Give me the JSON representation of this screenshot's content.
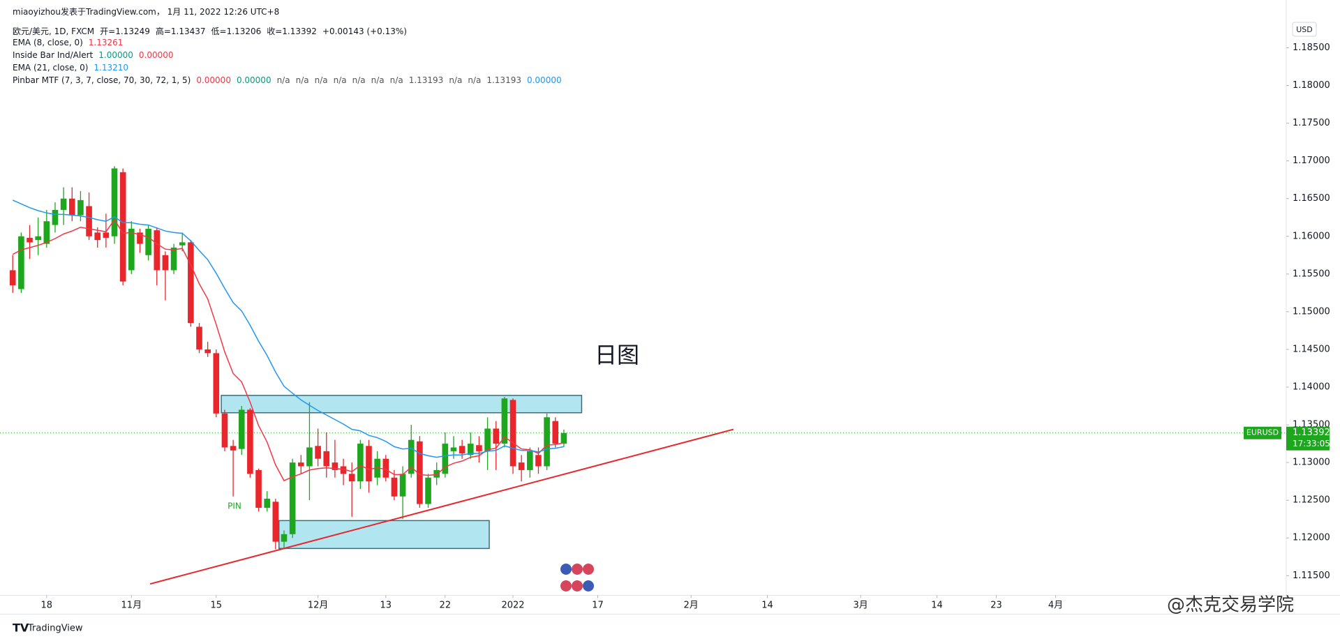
{
  "header": {
    "author": "miaoyizhou发表于TradingView.com， 1月 11, 2022 12:26 UTC+8",
    "symbol": "欧元/美元, 1D, FXCM",
    "ohlc": [
      {
        "label": "开=",
        "value": "1.13249"
      },
      {
        "label": "高=",
        "value": "1.13437"
      },
      {
        "label": "低=",
        "value": "1.13206"
      },
      {
        "label": "收=",
        "value": "1.13392"
      }
    ],
    "change": "+0.00143 (+0.13%)"
  },
  "indicators": [
    {
      "name": "EMA (8, close, 0)",
      "values": [
        {
          "text": "1.13261",
          "color": "#f23645"
        }
      ]
    },
    {
      "name": "Inside Bar Ind/Alert",
      "values": [
        {
          "text": "1.00000",
          "color": "#089981"
        },
        {
          "text": "0.00000",
          "color": "#f23645"
        }
      ]
    },
    {
      "name": "EMA (21, close, 0)",
      "values": [
        {
          "text": "1.13210",
          "color": "#2196f3"
        }
      ]
    },
    {
      "name": "Pinbar MTF (7, 3, 7, close, 70, 30, 72, 1, 5)",
      "values": [
        {
          "text": "0.00000",
          "color": "#f23645"
        },
        {
          "text": "0.00000",
          "color": "#089981"
        },
        {
          "text": "n/a",
          "color": "#555"
        },
        {
          "text": "n/a",
          "color": "#555"
        },
        {
          "text": "n/a",
          "color": "#555"
        },
        {
          "text": "n/a",
          "color": "#555"
        },
        {
          "text": "n/a",
          "color": "#555"
        },
        {
          "text": "n/a",
          "color": "#555"
        },
        {
          "text": "n/a",
          "color": "#555"
        },
        {
          "text": "1.13193",
          "color": "#555"
        },
        {
          "text": "n/a",
          "color": "#555"
        },
        {
          "text": "n/a",
          "color": "#555"
        },
        {
          "text": "1.13193",
          "color": "#555"
        },
        {
          "text": "0.00000",
          "color": "#2196f3"
        }
      ]
    }
  ],
  "chart_data": {
    "type": "candlestick",
    "annotation": "日图",
    "pin_label": "PIN",
    "currency": "USD",
    "up_color": "#1fa61f",
    "down_color": "#e8262b",
    "x": [
      0,
      1,
      2,
      3,
      4,
      5,
      6,
      7,
      8,
      9,
      10,
      11,
      12,
      13,
      14,
      15,
      16,
      17,
      18,
      19,
      20,
      21,
      22,
      23,
      24,
      25,
      26,
      27,
      28,
      29,
      30,
      31,
      32,
      33,
      34,
      35,
      36,
      37,
      38,
      39,
      40,
      41,
      42,
      43,
      44,
      45,
      46,
      47,
      48,
      49,
      50,
      51,
      52,
      53,
      54,
      55,
      56,
      57,
      58,
      59,
      60,
      61,
      62,
      63,
      64,
      65
    ],
    "open": [
      1.1555,
      1.153,
      1.1598,
      1.1595,
      1.159,
      1.1615,
      1.1635,
      1.165,
      1.1628,
      1.164,
      1.1605,
      1.1605,
      1.16,
      1.1685,
      1.1555,
      1.1605,
      1.1575,
      1.1608,
      1.1575,
      1.1555,
      1.1588,
      1.1592,
      1.148,
      1.145,
      1.1445,
      1.1365,
      1.1322,
      1.1318,
      1.137,
      1.129,
      1.124,
      1.1248,
      1.1195,
      1.1205,
      1.13,
      1.1295,
      1.1322,
      1.1315,
      1.13,
      1.1295,
      1.1285,
      1.1275,
      1.1322,
      1.128,
      1.1305,
      1.128,
      1.1255,
      1.1285,
      1.1328,
      1.1245,
      1.128,
      1.1285,
      1.1315,
      1.1322,
      1.131,
      1.1323,
      1.1315,
      1.1345,
      1.1325,
      1.1383,
      1.13,
      1.129,
      1.131,
      1.1295,
      1.1355,
      1.13249
    ],
    "high": [
      1.1575,
      1.1605,
      1.1615,
      1.1625,
      1.1635,
      1.1645,
      1.1665,
      1.1665,
      1.166,
      1.1658,
      1.1612,
      1.163,
      1.1693,
      1.169,
      1.162,
      1.161,
      1.1615,
      1.1612,
      1.158,
      1.159,
      1.1605,
      1.1595,
      1.1485,
      1.146,
      1.145,
      1.137,
      1.133,
      1.1375,
      1.1372,
      1.1292,
      1.1262,
      1.1252,
      1.121,
      1.1305,
      1.131,
      1.138,
      1.1345,
      1.134,
      1.133,
      1.1305,
      1.13,
      1.133,
      1.133,
      1.1315,
      1.131,
      1.129,
      1.1295,
      1.135,
      1.1335,
      1.1285,
      1.13,
      1.134,
      1.1335,
      1.133,
      1.134,
      1.1335,
      1.136,
      1.1355,
      1.1387,
      1.1385,
      1.131,
      1.132,
      1.132,
      1.1365,
      1.136,
      1.13437
    ],
    "low": [
      1.1525,
      1.1525,
      1.157,
      1.1575,
      1.1585,
      1.1605,
      1.1615,
      1.162,
      1.162,
      1.1595,
      1.1585,
      1.1585,
      1.159,
      1.1535,
      1.155,
      1.1578,
      1.1568,
      1.1535,
      1.1515,
      1.155,
      1.158,
      1.148,
      1.1445,
      1.144,
      1.136,
      1.1315,
      1.1255,
      1.131,
      1.128,
      1.1235,
      1.1235,
      1.1185,
      1.1185,
      1.12,
      1.1285,
      1.125,
      1.1295,
      1.128,
      1.128,
      1.127,
      1.1228,
      1.1265,
      1.126,
      1.127,
      1.1275,
      1.125,
      1.1225,
      1.128,
      1.124,
      1.124,
      1.127,
      1.128,
      1.1305,
      1.1305,
      1.1305,
      1.13,
      1.129,
      1.129,
      1.132,
      1.1285,
      1.1275,
      1.128,
      1.1285,
      1.129,
      1.132,
      1.13206
    ],
    "close": [
      1.1535,
      1.16,
      1.1592,
      1.16,
      1.162,
      1.1635,
      1.165,
      1.1628,
      1.1648,
      1.16,
      1.1595,
      1.1598,
      1.169,
      1.154,
      1.161,
      1.159,
      1.161,
      1.1555,
      1.1555,
      1.1585,
      1.1592,
      1.1485,
      1.145,
      1.1445,
      1.1365,
      1.132,
      1.1316,
      1.137,
      1.1285,
      1.124,
      1.1252,
      1.1195,
      1.1205,
      1.13,
      1.1295,
      1.132,
      1.1305,
      1.1295,
      1.129,
      1.1285,
      1.1275,
      1.1325,
      1.1275,
      1.1305,
      1.128,
      1.1255,
      1.1285,
      1.133,
      1.1245,
      1.128,
      1.129,
      1.1325,
      1.132,
      1.1312,
      1.1325,
      1.1315,
      1.1345,
      1.1325,
      1.1385,
      1.1295,
      1.129,
      1.1315,
      1.1295,
      1.136,
      1.1325,
      1.13392
    ],
    "lines": [
      {
        "name": "EMA (8, close, 0)",
        "color": "#f23645",
        "values": [
          1.1576,
          1.1582,
          1.1585,
          1.1588,
          1.1592,
          1.1597,
          1.1603,
          1.1607,
          1.1612,
          1.161,
          1.1608,
          1.1606,
          1.1622,
          1.1604,
          1.1605,
          1.1602,
          1.1599,
          1.159,
          1.1583,
          1.1582,
          1.1584,
          1.1562,
          1.1537,
          1.1517,
          1.1483,
          1.1447,
          1.1418,
          1.1407,
          1.138,
          1.1349,
          1.1327,
          1.1297,
          1.1276,
          1.1281,
          1.1285,
          1.129,
          1.1292,
          1.1293,
          1.1292,
          1.1291,
          1.1288,
          1.1296,
          1.1291,
          1.1293,
          1.1291,
          1.1284,
          1.1284,
          1.1294,
          1.1284,
          1.1283,
          1.1284,
          1.1294,
          1.1299,
          1.1302,
          1.1307,
          1.1309,
          1.1317,
          1.1319,
          1.1334,
          1.1326,
          1.1318,
          1.1317,
          1.1312,
          1.1323,
          1.1324,
          1.13261
        ]
      },
      {
        "name": "EMA (21, close, 0)",
        "color": "#2196f3",
        "values": [
          1.1648,
          1.1643,
          1.1638,
          1.1634,
          1.1631,
          1.1629,
          1.1629,
          1.1628,
          1.1627,
          1.1625,
          1.1622,
          1.162,
          1.1626,
          1.1618,
          1.1618,
          1.1616,
          1.1615,
          1.1611,
          1.1607,
          1.1605,
          1.1604,
          1.1594,
          1.1581,
          1.1569,
          1.1551,
          1.1531,
          1.1512,
          1.1501,
          1.1482,
          1.1461,
          1.1442,
          1.142,
          1.1401,
          1.1392,
          1.1383,
          1.1376,
          1.1369,
          1.1363,
          1.1357,
          1.1351,
          1.1344,
          1.1342,
          1.1336,
          1.1333,
          1.1328,
          1.1321,
          1.1318,
          1.1319,
          1.1312,
          1.1309,
          1.1307,
          1.1309,
          1.131,
          1.131,
          1.1312,
          1.1312,
          1.1315,
          1.1316,
          1.1322,
          1.1319,
          1.1316,
          1.1316,
          1.1314,
          1.1318,
          1.1319,
          1.1321
        ]
      }
    ],
    "zones": [
      {
        "x": [
          24.6,
          67.1
        ],
        "y": [
          1.1366,
          1.1389
        ],
        "color": "#a3e2ee"
      },
      {
        "x": [
          31.4,
          56.2
        ],
        "y": [
          1.1186,
          1.1223
        ],
        "color": "#a3e2ee"
      }
    ],
    "trendline": {
      "x": [
        16.2,
        85.0
      ],
      "y": [
        1.1139,
        1.1344
      ],
      "color": "#e8262b"
    },
    "last_price": {
      "value": 1.13392,
      "label": "1.13392",
      "symbol": "EURUSD",
      "countdown": "17:33:05",
      "color": "#1fa61f"
    },
    "xlim": [
      -1.5,
      150.2
    ],
    "ylim": [
      1.1124,
      1.1893
    ],
    "xticks": [
      {
        "value": 4,
        "label": "18"
      },
      {
        "value": 14,
        "label": "11月"
      },
      {
        "value": 24,
        "label": "15"
      },
      {
        "value": 36,
        "label": "12月"
      },
      {
        "value": 44,
        "label": "13"
      },
      {
        "value": 51,
        "label": "22"
      },
      {
        "value": 59,
        "label": "2022"
      },
      {
        "value": 69,
        "label": "17"
      },
      {
        "value": 80,
        "label": "2月"
      },
      {
        "value": 89,
        "label": "14"
      },
      {
        "value": 100,
        "label": "3月"
      },
      {
        "value": 109,
        "label": "14"
      },
      {
        "value": 116,
        "label": "23"
      },
      {
        "value": 123,
        "label": "4月"
      }
    ],
    "yticks": [
      {
        "value": 1.115,
        "label": "1.11500"
      },
      {
        "value": 1.12,
        "label": "1.12000"
      },
      {
        "value": 1.125,
        "label": "1.12500"
      },
      {
        "value": 1.13,
        "label": "1.13000"
      },
      {
        "value": 1.135,
        "label": "1.13500"
      },
      {
        "value": 1.14,
        "label": "1.14000"
      },
      {
        "value": 1.145,
        "label": "1.14500"
      },
      {
        "value": 1.15,
        "label": "1.15000"
      },
      {
        "value": 1.155,
        "label": "1.15500"
      },
      {
        "value": 1.16,
        "label": "1.16000"
      },
      {
        "value": 1.165,
        "label": "1.16500"
      },
      {
        "value": 1.17,
        "label": "1.17000"
      },
      {
        "value": 1.175,
        "label": "1.17500"
      },
      {
        "value": 1.18,
        "label": "1.18000"
      },
      {
        "value": 1.185,
        "label": "1.18500"
      }
    ]
  },
  "footer": {
    "brand": "TradingView",
    "watermark": "@杰克交易学院"
  }
}
